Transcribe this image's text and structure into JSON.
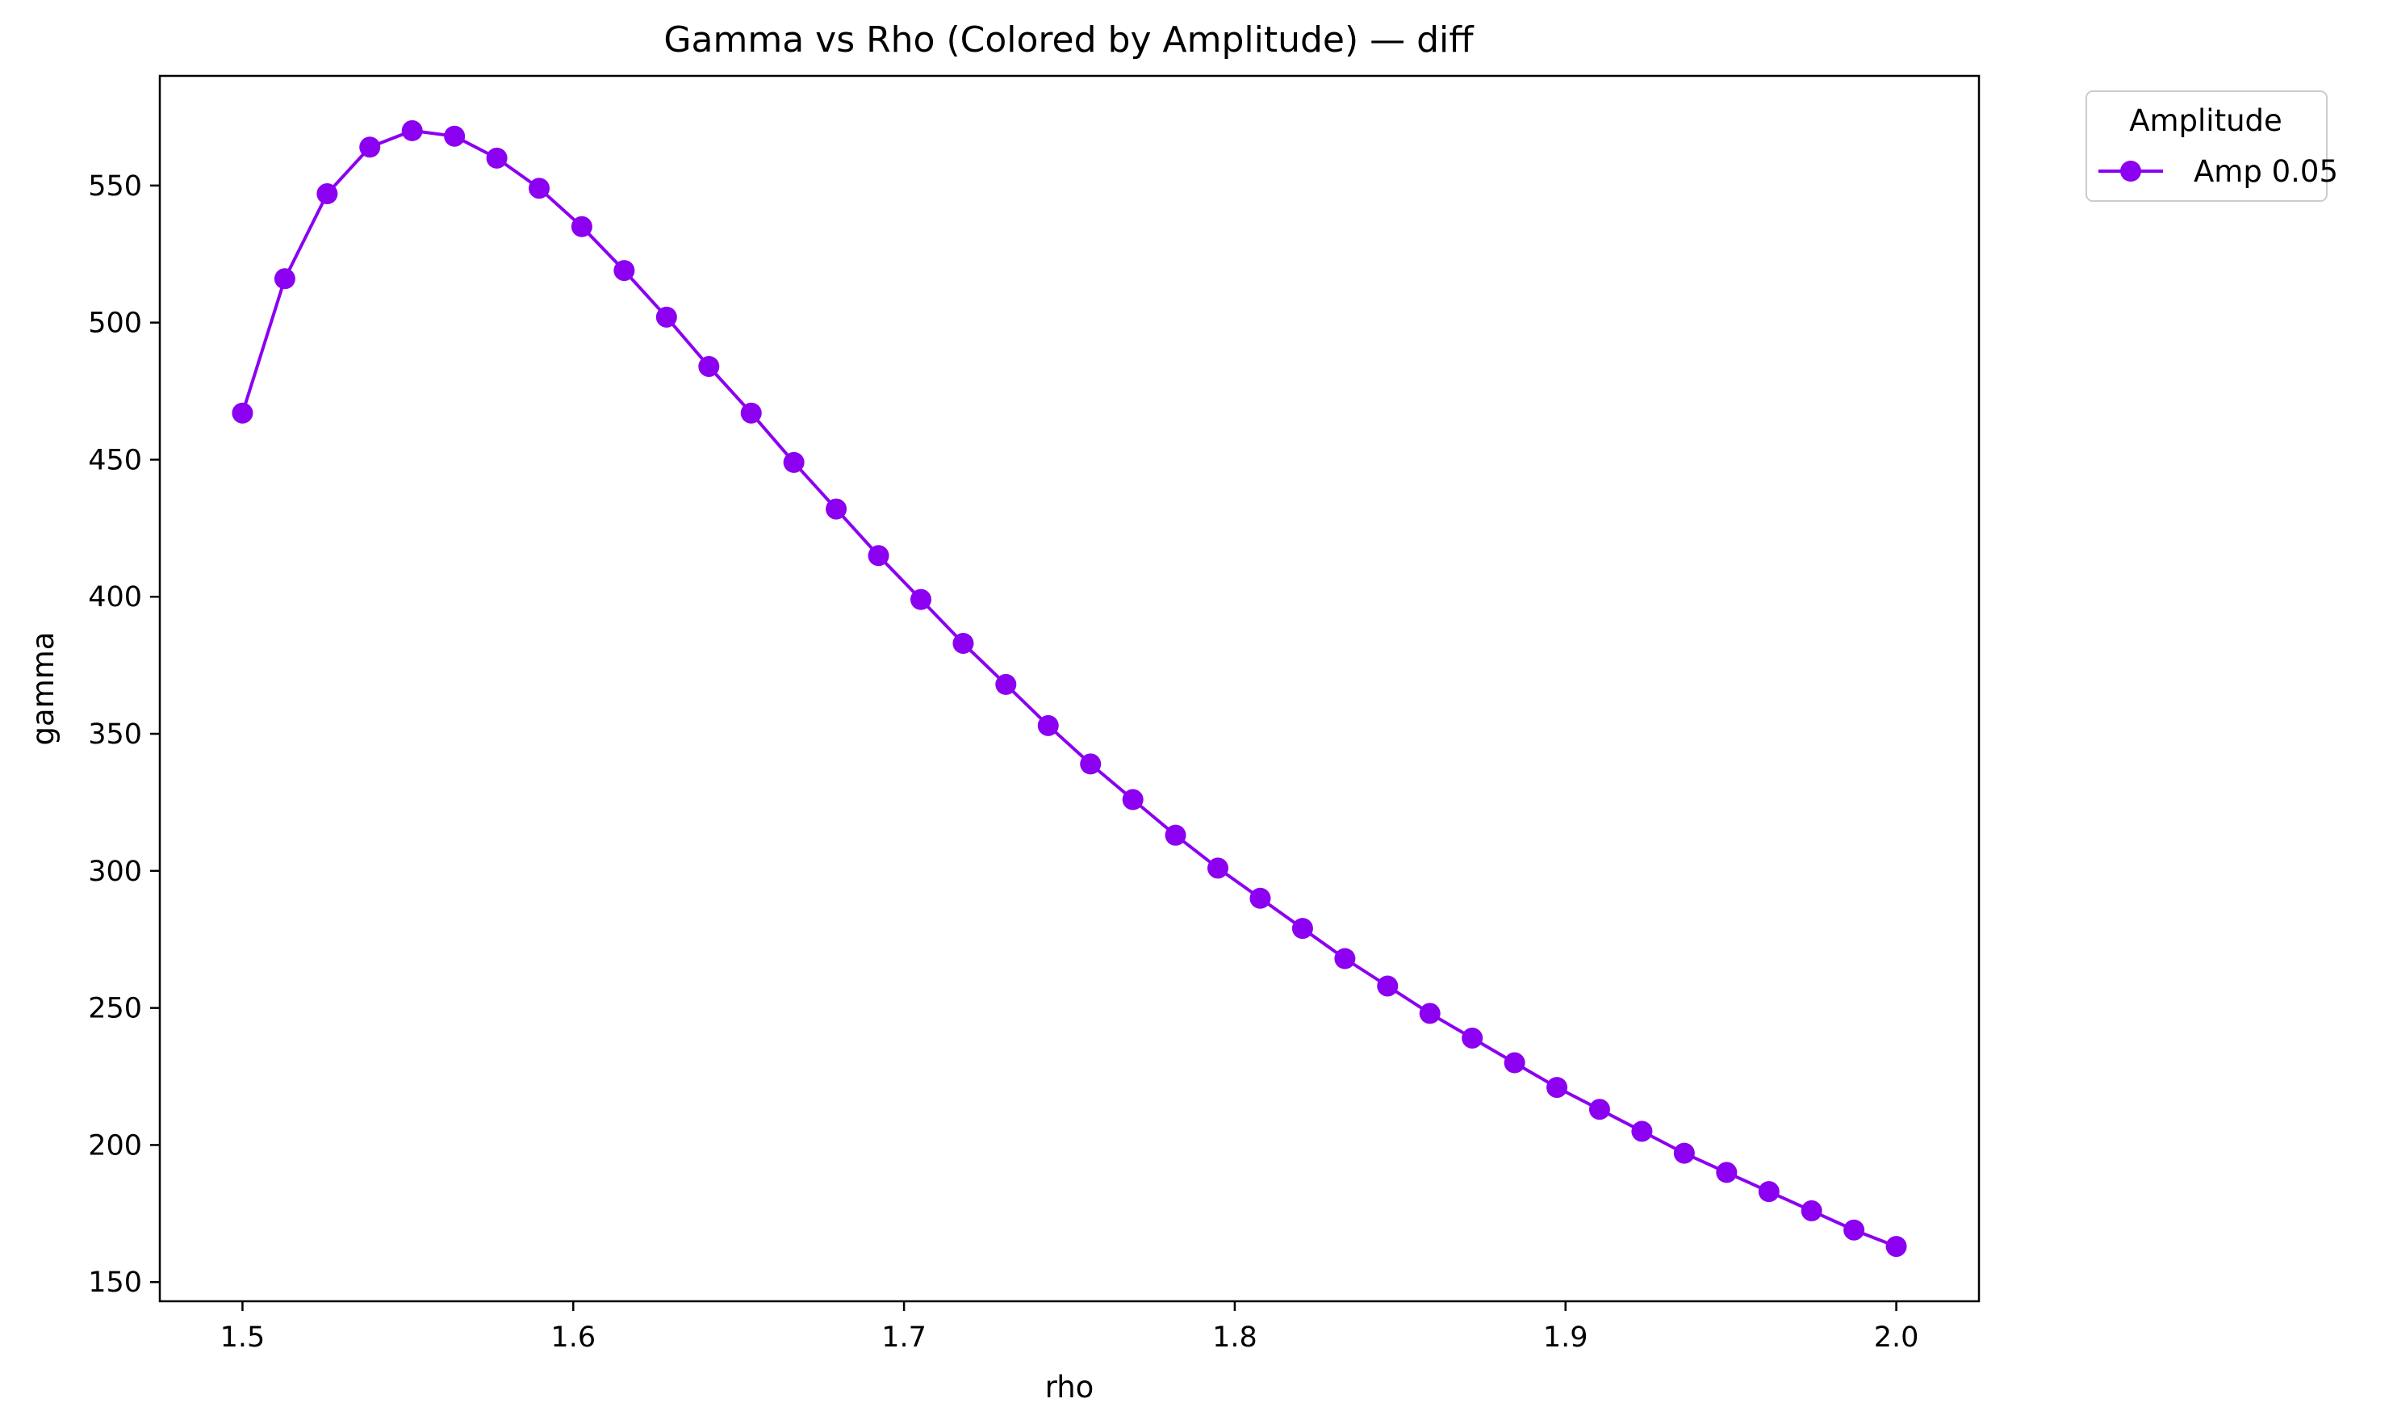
{
  "colors": {
    "series": "#8b00f0",
    "axes": "#000000",
    "background": "#ffffff",
    "legend_border": "#cccccc"
  },
  "chart_data": {
    "type": "line",
    "title": "Gamma vs Rho (Colored by Amplitude) — diff",
    "xlabel": "rho",
    "ylabel": "gamma",
    "xlim": [
      1.475,
      2.025
    ],
    "ylim": [
      143,
      590
    ],
    "x_ticks": [
      1.5,
      1.6,
      1.7,
      1.8,
      1.9,
      2.0
    ],
    "x_tick_labels": [
      "1.5",
      "1.6",
      "1.7",
      "1.8",
      "1.9",
      "2.0"
    ],
    "y_ticks": [
      150,
      200,
      250,
      300,
      350,
      400,
      450,
      500,
      550
    ],
    "y_tick_labels": [
      "150",
      "200",
      "250",
      "300",
      "350",
      "400",
      "450",
      "500",
      "550"
    ],
    "grid": false,
    "markers": true,
    "legend": {
      "title": "Amplitude",
      "placement": "outside-top-right"
    },
    "series": [
      {
        "name": "Amp 0.05",
        "x": [
          1.5,
          1.5128,
          1.5256,
          1.5385,
          1.5513,
          1.5641,
          1.5769,
          1.5897,
          1.6026,
          1.6154,
          1.6282,
          1.641,
          1.6538,
          1.6667,
          1.6795,
          1.6923,
          1.7051,
          1.7179,
          1.7308,
          1.7436,
          1.7564,
          1.7692,
          1.7821,
          1.7949,
          1.8077,
          1.8205,
          1.8333,
          1.8462,
          1.859,
          1.8718,
          1.8846,
          1.8974,
          1.9103,
          1.9231,
          1.9359,
          1.9487,
          1.9615,
          1.9744,
          1.9872,
          2.0
        ],
        "y": [
          467,
          516,
          547,
          564,
          570,
          568,
          560,
          549,
          535,
          519,
          502,
          484,
          467,
          449,
          432,
          415,
          399,
          383,
          368,
          353,
          339,
          326,
          313,
          301,
          290,
          279,
          268,
          258,
          248,
          239,
          230,
          221,
          213,
          205,
          197,
          190,
          183,
          176,
          169,
          163
        ]
      }
    ]
  }
}
